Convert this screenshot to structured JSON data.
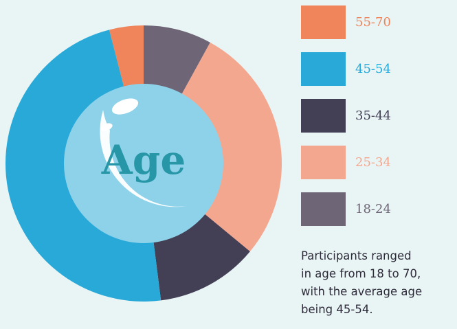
{
  "chart_data": {
    "type": "donut",
    "title": "Age",
    "categories": [
      "18-24",
      "25-34",
      "35-44",
      "45-54",
      "55-70"
    ],
    "values": [
      8,
      28,
      12,
      48,
      4
    ],
    "colors": [
      "#6e6676",
      "#f4a78f",
      "#433f55",
      "#29a9d8",
      "#f0845a"
    ],
    "note": [
      "Participants ranged",
      "in age from 18 to 70,",
      "with the average age",
      "being 45-54."
    ]
  }
}
